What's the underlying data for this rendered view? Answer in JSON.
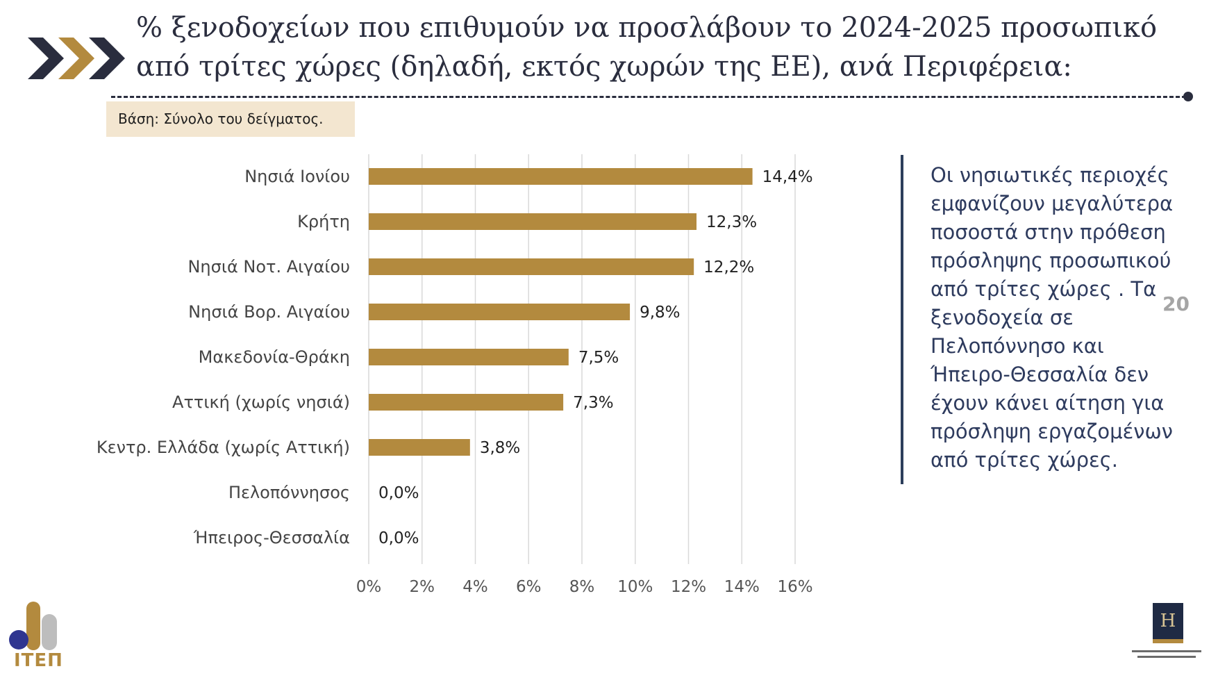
{
  "header": {
    "title": "% ξενοδοχείων που επιθυμούν να προσλάβουν το 2024-2025 προσωπικό από τρίτες χώρες (δηλαδή, εκτός χωρών της ΕΕ), ανά Περιφέρεια:",
    "base_note": "Βάση: Σύνολο του δείγματος."
  },
  "colors": {
    "bar": "#b38a3e",
    "navy": "#2a2d3e",
    "gold": "#b38a3e",
    "grid": "#d9d9d9"
  },
  "chart_data": {
    "type": "bar",
    "orientation": "horizontal",
    "categories": [
      "Νησιά Ιονίου",
      "Κρήτη",
      "Νησιά Νοτ. Αιγαίου",
      "Νησιά Βορ. Αιγαίου",
      "Μακεδονία-Θράκη",
      "Αττική (χωρίς νησιά)",
      "Κεντρ. Ελλάδα (χωρίς Αττική)",
      "Πελοπόννησος",
      "Ήπειρος-Θεσσαλία"
    ],
    "values": [
      14.4,
      12.3,
      12.2,
      9.8,
      7.5,
      7.3,
      3.8,
      0.0,
      0.0
    ],
    "value_labels": [
      "14,4%",
      "12,3%",
      "12,2%",
      "9,8%",
      "7,5%",
      "7,3%",
      "3,8%",
      "0,0%",
      "0,0%"
    ],
    "xlim": [
      0,
      16
    ],
    "xticks": [
      0,
      2,
      4,
      6,
      8,
      10,
      12,
      14,
      16
    ],
    "xtick_labels": [
      "0%",
      "2%",
      "4%",
      "6%",
      "8%",
      "10%",
      "12%",
      "14%",
      "16%"
    ],
    "grid": "vertical",
    "legend": "none",
    "title": "",
    "xlabel": "",
    "ylabel": ""
  },
  "side_note": {
    "text": "Οι νησιωτικές περιοχές εμφανίζουν μεγαλύτερα ποσοστά στην πρόθεση πρόσληψης προσωπικού από τρίτες χώρες . Τα ξενοδοχεία σε Πελοπόννησο και Ήπειρο-Θεσσαλία δεν έχουν κάνει αίτηση για πρόσληψη εργαζομένων από τρίτες χώρες."
  },
  "page_number": "20",
  "logos": {
    "left": "ΙΤΕΠ",
    "right_letter": "H"
  }
}
